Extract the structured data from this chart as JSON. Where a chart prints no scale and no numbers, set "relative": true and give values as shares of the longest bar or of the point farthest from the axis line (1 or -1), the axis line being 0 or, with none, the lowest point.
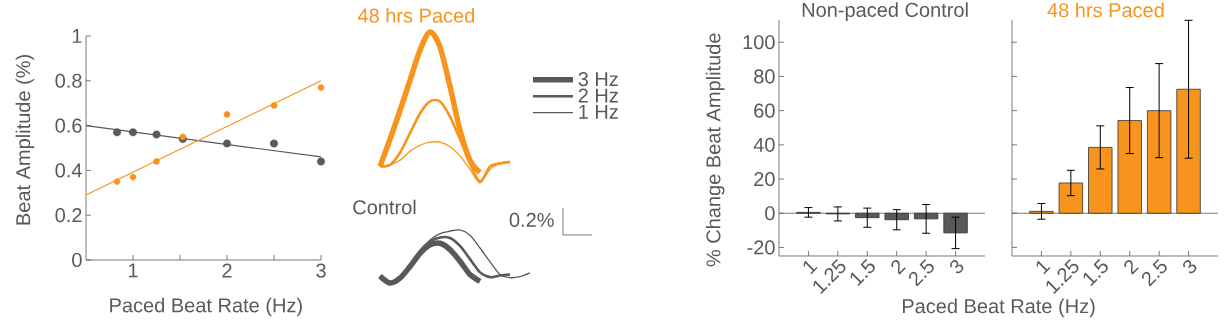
{
  "chart_data": [
    {
      "type": "scatter",
      "xlabel": "Paced Beat Rate (Hz)",
      "ylabel": "Beat Amplitude (%)",
      "xlim": [
        0.5,
        3
      ],
      "ylim": [
        0,
        1
      ],
      "xticks": [
        1,
        {
          "value": 1.5,
          "label": null
        },
        2,
        {
          "value": 2.5,
          "label": null
        },
        3
      ],
      "yticks": [
        0,
        0.2,
        0.4,
        0.6,
        0.8,
        1
      ],
      "series": [
        {
          "type": "scatter",
          "marker": "circle",
          "color": "#58595b",
          "x": [
            0.83,
            1,
            1.25,
            1.53,
            2,
            2.5,
            3
          ],
          "values": [
            0.57,
            0.57,
            0.56,
            0.54,
            0.52,
            0.52,
            0.44
          ]
        },
        {
          "type": "scatter",
          "marker": "circle",
          "color": "#f7941d",
          "x": [
            0.83,
            1,
            1.25,
            1.53,
            2,
            2.5,
            3
          ],
          "values": [
            0.35,
            0.37,
            0.44,
            0.55,
            0.65,
            0.69,
            0.77
          ]
        },
        {
          "type": "line",
          "color": "#58595b",
          "x": [
            0.5,
            3
          ],
          "values": [
            0.6,
            0.46
          ]
        },
        {
          "type": "line",
          "color": "#f7941d",
          "x": [
            0.5,
            3
          ],
          "values": [
            0.29,
            0.8
          ]
        }
      ]
    },
    {
      "type": "line",
      "relative": true,
      "title": "48 hrs Paced",
      "categories": [
        null,
        null,
        null,
        null,
        null,
        null,
        null,
        null,
        null,
        null,
        null,
        null,
        null,
        null
      ],
      "series": [
        {
          "color": "#f7941d",
          "values": [
            0.11,
            0.29,
            0.48,
            0.68,
            0.88,
            1,
            0.9,
            0.64,
            0.35,
            0.15,
            0.07,
            null,
            null,
            null
          ]
        },
        {
          "color": "#f7941d",
          "values": [
            0.11,
            0.12,
            0.2,
            0.33,
            0.46,
            0.54,
            0.54,
            0.44,
            0.29,
            0.13,
            0.01,
            0.11,
            0.13,
            0.14
          ]
        },
        {
          "color": "#f7941d",
          "values": [
            0.11,
            0.12,
            0.15,
            0.21,
            0.25,
            0.27,
            0.27,
            0.24,
            0.18,
            0.09,
            0,
            0.09,
            0.13,
            0.14
          ]
        }
      ]
    },
    {
      "type": "line",
      "relative": true,
      "title": "Control",
      "legend": "top right",
      "annotations": [
        "0.2%"
      ],
      "categories": [
        null,
        null,
        null,
        null,
        null,
        null,
        null,
        null,
        null,
        null,
        null,
        null,
        null,
        null,
        null,
        null
      ],
      "series": [
        {
          "name": "3 Hz",
          "color": "#58595b",
          "values": [
            0.13,
            0,
            0.09,
            0.31,
            0.56,
            0.72,
            0.75,
            0.63,
            0.41,
            0.16,
            0.03,
            null,
            null,
            null,
            null,
            null
          ]
        },
        {
          "name": "2 Hz",
          "color": "#58595b",
          "values": [
            0.13,
            0,
            0.09,
            0.31,
            0.6,
            0.78,
            0.86,
            0.85,
            0.7,
            0.45,
            0.2,
            0.11,
            0.14,
            0.16,
            null,
            null
          ]
        },
        {
          "name": "1 Hz",
          "color": "#58595b",
          "values": [
            0.13,
            0,
            0.09,
            0.31,
            0.6,
            0.81,
            0.93,
            0.98,
            1,
            0.9,
            0.66,
            0.4,
            0.16,
            0.1,
            0.12,
            0.19
          ]
        }
      ]
    },
    {
      "type": "bar",
      "title": "Non-paced Control",
      "xlabel": "Paced Beat Rate (Hz)",
      "ylabel": "% Change Beat Amplitude",
      "categories": [
        "1",
        "1.25",
        "1.5",
        "2",
        "2.5",
        "3"
      ],
      "color": "#58595b",
      "values": [
        0.5,
        -0.4,
        -2.6,
        -3.8,
        -3.3,
        -11.5
      ],
      "errors": [
        2.8,
        4.1,
        5.6,
        5.9,
        8.4,
        9.2
      ],
      "ylim": [
        -25,
        113
      ],
      "yticks": [
        -20,
        0,
        20,
        40,
        60,
        80,
        100
      ]
    },
    {
      "type": "bar",
      "title": "48 hrs Paced",
      "tick_labels": "x",
      "categories": [
        "1",
        "1.25",
        "1.5",
        "2",
        "2.5",
        "3"
      ],
      "color": "#f7941d",
      "values": [
        1.1,
        17.7,
        38.5,
        54.2,
        60,
        72.5
      ],
      "errors": [
        4.6,
        7.4,
        12.6,
        19.3,
        27.5,
        40.3
      ],
      "ylim": [
        -25,
        113
      ],
      "yticks": [
        -20,
        0,
        20,
        40,
        60,
        80,
        100
      ]
    }
  ]
}
